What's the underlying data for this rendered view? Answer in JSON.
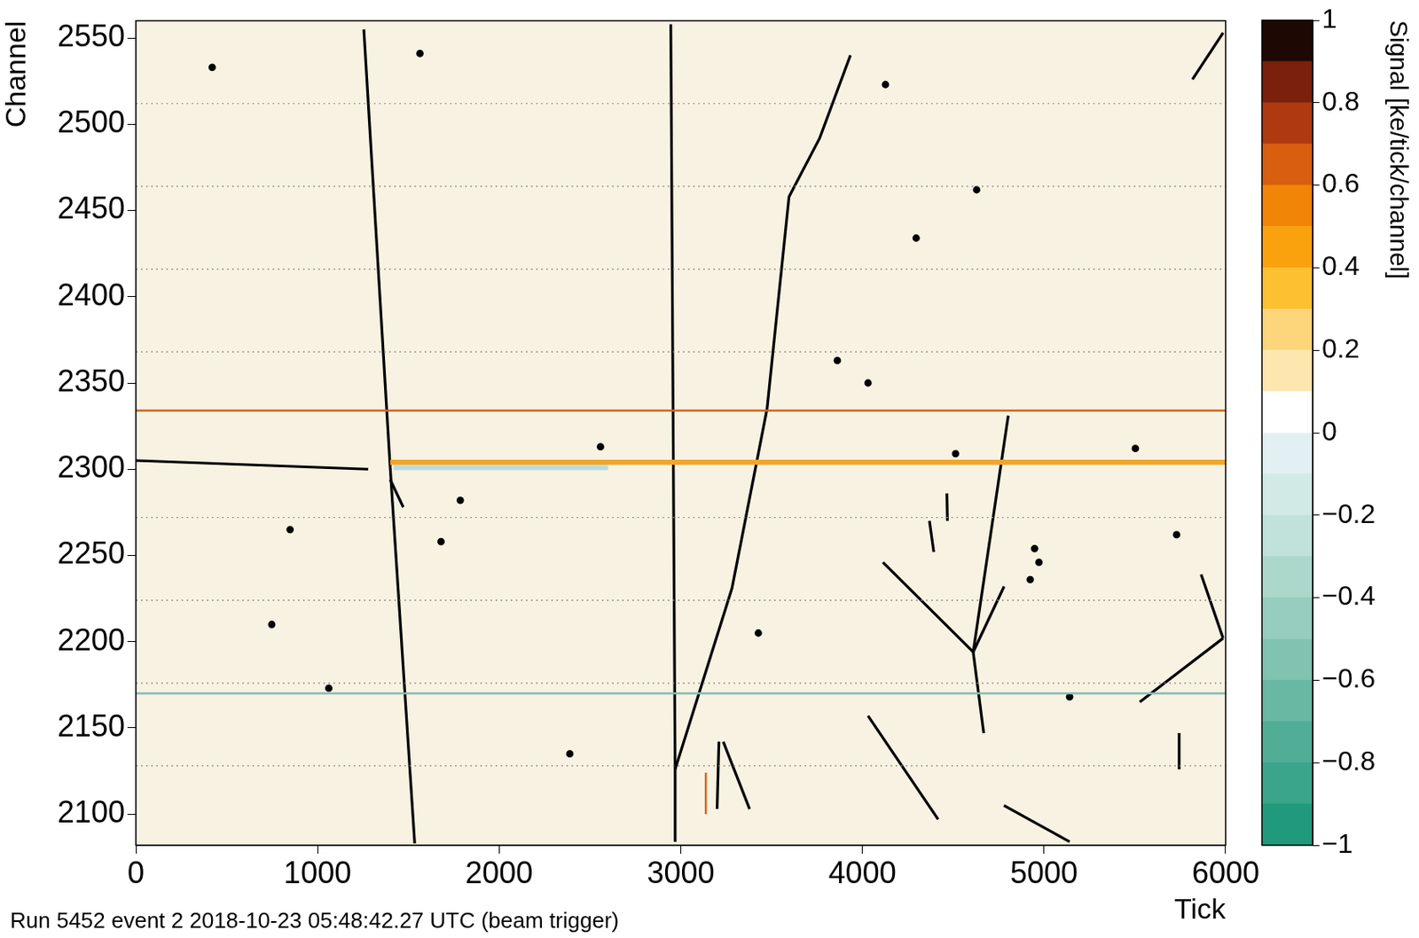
{
  "chart_data": {
    "type": "line",
    "x_label": "Tick",
    "y_label": "Channel",
    "annotations": [
      "Run 5452 event 2 2018-10-23 05:48:42.27 UTC (beam trigger)"
    ],
    "xlim": [
      0,
      6000
    ],
    "xticks": [
      0,
      1000,
      2000,
      3000,
      4000,
      5000,
      6000
    ],
    "ylim": [
      2082,
      2560
    ],
    "yticks": [
      2100,
      2150,
      2200,
      2250,
      2300,
      2350,
      2400,
      2450,
      2500,
      2550
    ],
    "grid": false,
    "series": [
      {
        "type": "line",
        "color": "#888888",
        "line_style": "dotted",
        "values": [
          [
            0,
            2512
          ],
          [
            6000,
            2512
          ]
        ]
      },
      {
        "type": "line",
        "color": "#888888",
        "line_style": "dotted",
        "values": [
          [
            0,
            2464
          ],
          [
            6000,
            2464
          ]
        ]
      },
      {
        "type": "line",
        "color": "#888888",
        "line_style": "dotted",
        "values": [
          [
            0,
            2416
          ],
          [
            6000,
            2416
          ]
        ]
      },
      {
        "type": "line",
        "color": "#888888",
        "line_style": "dotted",
        "values": [
          [
            0,
            2368
          ],
          [
            6000,
            2368
          ]
        ]
      },
      {
        "type": "line",
        "color": "#888888",
        "line_style": "dotted",
        "values": [
          [
            0,
            2272
          ],
          [
            6000,
            2272
          ]
        ]
      },
      {
        "type": "line",
        "color": "#888888",
        "line_style": "dotted",
        "values": [
          [
            0,
            2224
          ],
          [
            6000,
            2224
          ]
        ]
      },
      {
        "type": "line",
        "color": "#888888",
        "line_style": "dotted",
        "values": [
          [
            0,
            2176
          ],
          [
            6000,
            2176
          ]
        ]
      },
      {
        "type": "line",
        "color": "#888888",
        "line_style": "dotted",
        "values": [
          [
            0,
            2128
          ],
          [
            6000,
            2128
          ]
        ]
      },
      {
        "type": "line",
        "color": "#b8dcdc",
        "line_style": "solid",
        "values": [
          [
            1420,
            2301
          ],
          [
            2600,
            2301
          ]
        ]
      },
      {
        "type": "line",
        "color": "#f3a52a",
        "line_style": "solid",
        "values": [
          [
            1400,
            2304
          ],
          [
            6000,
            2304
          ]
        ]
      },
      {
        "type": "line",
        "color": "#d2691e",
        "line_style": "solid",
        "values": [
          [
            0,
            2334
          ],
          [
            6000,
            2334
          ]
        ]
      },
      {
        "type": "line",
        "color": "#7fbfb8",
        "line_style": "solid",
        "values": [
          [
            0,
            2170
          ],
          [
            6000,
            2170
          ]
        ]
      },
      {
        "type": "line",
        "color": "#000000",
        "line_style": "solid",
        "values": [
          [
            1255,
            2555
          ],
          [
            1400,
            2301
          ],
          [
            1535,
            2083
          ]
        ]
      },
      {
        "type": "line",
        "color": "#000000",
        "line_style": "solid",
        "values": [
          [
            1400,
            2294
          ],
          [
            1472,
            2278
          ]
        ]
      },
      {
        "type": "line",
        "color": "#000000",
        "line_style": "solid",
        "values": [
          [
            2945,
            2558
          ],
          [
            2969,
            2126
          ],
          [
            2969,
            2084
          ]
        ]
      },
      {
        "type": "line",
        "color": "#000000",
        "line_style": "solid",
        "values": [
          [
            2969,
            2126
          ],
          [
            3282,
            2231
          ],
          [
            3475,
            2335
          ],
          [
            3596,
            2458
          ],
          [
            3765,
            2492
          ],
          [
            3934,
            2540
          ]
        ]
      },
      {
        "type": "line",
        "color": "#000000",
        "line_style": "solid",
        "values": [
          [
            0,
            2305
          ],
          [
            1279,
            2300
          ]
        ]
      },
      {
        "type": "line",
        "color": "#000000",
        "line_style": "solid",
        "values": [
          [
            4610,
            2194
          ],
          [
            4803,
            2331
          ]
        ]
      },
      {
        "type": "line",
        "color": "#000000",
        "line_style": "solid",
        "values": [
          [
            4610,
            2194
          ],
          [
            4113,
            2246
          ]
        ]
      },
      {
        "type": "line",
        "color": "#000000",
        "line_style": "solid",
        "values": [
          [
            4610,
            2194
          ],
          [
            4668,
            2147
          ]
        ]
      },
      {
        "type": "line",
        "color": "#000000",
        "line_style": "solid",
        "values": [
          [
            4610,
            2194
          ],
          [
            4780,
            2232
          ]
        ]
      },
      {
        "type": "line",
        "color": "#000000",
        "line_style": "solid",
        "values": [
          [
            4031,
            2157
          ],
          [
            4417,
            2097
          ]
        ]
      },
      {
        "type": "line",
        "color": "#000000",
        "line_style": "solid",
        "values": [
          [
            4779,
            2105
          ],
          [
            5141,
            2084
          ]
        ]
      },
      {
        "type": "line",
        "color": "#000000",
        "line_style": "solid",
        "values": [
          [
            5527,
            2165
          ],
          [
            5986,
            2202
          ]
        ]
      },
      {
        "type": "line",
        "color": "#000000",
        "line_style": "solid",
        "values": [
          [
            5865,
            2239
          ],
          [
            5986,
            2202
          ]
        ]
      },
      {
        "type": "line",
        "color": "#000000",
        "line_style": "solid",
        "values": [
          [
            5817,
            2526
          ],
          [
            5986,
            2553
          ]
        ]
      },
      {
        "type": "line",
        "color": "#000000",
        "line_style": "solid",
        "values": [
          [
            3234,
            2142
          ],
          [
            3379,
            2103
          ]
        ]
      },
      {
        "type": "line",
        "color": "#000000",
        "line_style": "solid",
        "values": [
          [
            3210,
            2142
          ],
          [
            3200,
            2103
          ]
        ]
      },
      {
        "type": "line",
        "color": "#d2691e",
        "line_style": "solid",
        "values": [
          [
            3138,
            2124
          ],
          [
            3138,
            2100
          ]
        ]
      },
      {
        "type": "line",
        "color": "#000000",
        "line_style": "solid",
        "values": [
          [
            4465,
            2286
          ],
          [
            4468,
            2270
          ]
        ]
      },
      {
        "type": "line",
        "color": "#000000",
        "line_style": "solid",
        "values": [
          [
            4369,
            2270
          ],
          [
            4393,
            2252
          ]
        ]
      },
      {
        "type": "line",
        "color": "#000000",
        "line_style": "solid",
        "values": [
          [
            5744,
            2147
          ],
          [
            5744,
            2126
          ]
        ]
      },
      {
        "type": "scatter",
        "color": "#000000",
        "marker": "dot",
        "values": [
          [
            420,
            2533
          ],
          [
            1564,
            2541
          ],
          [
            748,
            2210
          ],
          [
            849,
            2265
          ],
          [
            1786,
            2282
          ],
          [
            1680,
            2258
          ],
          [
            2558,
            2313
          ],
          [
            4513,
            2309
          ],
          [
            4031,
            2350
          ],
          [
            3862,
            2363
          ],
          [
            4127,
            2523
          ],
          [
            4629,
            2462
          ],
          [
            3427,
            2205
          ],
          [
            4296,
            2434
          ],
          [
            4924,
            2236
          ],
          [
            4972,
            2246
          ],
          [
            4948,
            2254
          ],
          [
            5141,
            2168
          ],
          [
            2389,
            2135
          ],
          [
            1062,
            2173
          ],
          [
            5503,
            2312
          ],
          [
            5730,
            2262
          ]
        ]
      }
    ],
    "colorbar": {
      "label": "Signal [ke/tick/channel]",
      "range": [
        -1,
        1
      ],
      "ticks": [
        {
          "value": -1,
          "label": "−1"
        },
        {
          "value": -0.8,
          "label": "−0.8"
        },
        {
          "value": -0.6,
          "label": "−0.6"
        },
        {
          "value": -0.4,
          "label": "−0.4"
        },
        {
          "value": -0.2,
          "label": "−0.2"
        },
        0,
        0.2,
        0.4,
        0.6,
        0.8,
        1
      ],
      "colors": [
        "#1f9a7c",
        "#3aa58a",
        "#52ad96",
        "#68b8a3",
        "#80c3b1",
        "#96cdbf",
        "#acd8cc",
        "#c0e2da",
        "#d2eae6",
        "#e3f0f3",
        "#ffffff",
        "#fde7ae",
        "#fdd57a",
        "#fcc030",
        "#f9a20e",
        "#f08508",
        "#d85e10",
        "#b03a10",
        "#7a200c",
        "#1e0804"
      ]
    }
  }
}
